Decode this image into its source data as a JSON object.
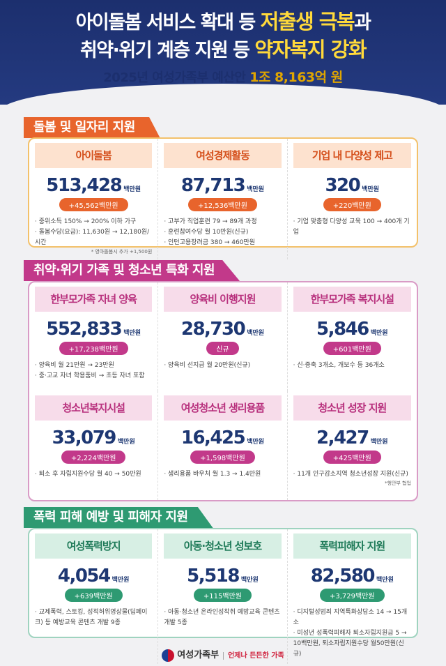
{
  "header": {
    "line1_pre": "아이돌봄 서비스 확대 등 ",
    "line1_hl": "저출생 극복",
    "line1_post": "과",
    "line2_pre": "취약·위기 계층 지원 등 ",
    "line2_hl": "약자복지 강화",
    "line3_pre": "2025년 여성가족부 예산안 ",
    "line3_hl": "1조 8,163억 원"
  },
  "unit": "백만원",
  "sections": [
    {
      "title": "돌봄 및 일자리 지원",
      "color": "#e8642c",
      "border": "#f3c16a",
      "label_bg": "#fde2cf",
      "label_color": "#d5501c",
      "items": [
        {
          "label": "아이돌봄",
          "amount": "513,428",
          "change": "+45,562백만원",
          "bullets": [
            "중위소득 150% → 200% 이하 가구",
            "돌봄수당(요금): 11,630원 → 12,180원/시간"
          ],
          "note": "* 영아돌봄시 추가 +1,500원"
        },
        {
          "label": "여성경제활동",
          "amount": "87,713",
          "change": "+12,536백만원",
          "bullets": [
            "고부가 직업훈련 79 → 89개 과정",
            "훈련참여수당 월 10만원(신규)",
            "인턴고용장려금 380 → 460만원"
          ]
        },
        {
          "label": "기업 내 다양성 제고",
          "amount": "320",
          "change": "+220백만원",
          "bullets": [
            "기업 맞춤형 다양성 교육 100 → 400개 기업"
          ]
        }
      ]
    },
    {
      "title": "취약·위기 가족 및 청소년 특화 지원",
      "color": "#c2398a",
      "border": "#d99bc6",
      "label_bg": "#f7dcea",
      "label_color": "#b8307d",
      "items": [
        {
          "label": "한부모가족 자녀 양육",
          "amount": "552,833",
          "change": "+17,238백만원",
          "bullets": [
            "양육비 월 21만원 → 23만원",
            "중·고교 자녀 학용품비 → 초등 자녀 포함"
          ]
        },
        {
          "label": "양육비 이행지원",
          "amount": "28,730",
          "change": "신규",
          "bullets": [
            "양육비 선지급 월 20만원(신규)"
          ]
        },
        {
          "label": "한부모가족 복지시설",
          "amount": "5,846",
          "change": "+601백만원",
          "bullets": [
            "신·증축 3개소, 개보수 등 36개소"
          ]
        },
        {
          "label": "청소년복지시설",
          "amount": "33,079",
          "change": "+2,224백만원",
          "bullets": [
            "퇴소 후 자립지원수당 월 40 → 50만원"
          ]
        },
        {
          "label": "여성청소년 생리용품",
          "amount": "16,425",
          "change": "+1,598백만원",
          "bullets": [
            "생리용품 바우처 월 1.3 → 1.4만원"
          ]
        },
        {
          "label": "청소년 성장 지원",
          "amount": "2,427",
          "change": "+425백만원",
          "bullets": [
            "11개 인구감소지역 청소년성장 지원(신규)"
          ],
          "note": "*행안부 협업"
        }
      ]
    },
    {
      "title": "폭력 피해 예방 및 피해자 지원",
      "color": "#2e9a72",
      "border": "#9fd3bf",
      "label_bg": "#d7efe4",
      "label_color": "#1e7a58",
      "items": [
        {
          "label": "여성폭력방지",
          "amount": "4,054",
          "change": "+639백만원",
          "bullets": [
            "교제폭력, 스토킹, 성적허위영상물(딥페이크) 등 예방교육 콘텐츠 개발 9종"
          ]
        },
        {
          "label": "아동·청소년 성보호",
          "amount": "5,518",
          "change": "+115백만원",
          "bullets": [
            "아동·청소년 온라인성착취 예방교육 콘텐츠 개발 5종"
          ]
        },
        {
          "label": "폭력피해자 지원",
          "amount": "82,580",
          "change": "+3,729백만원",
          "bullets": [
            "디지털성범죄 지역특화상담소 14 → 15개소",
            "미성년 성폭력피해자 퇴소자립지원금 5 → 10백만원, 퇴소자립지원수당 월50만원(신규)"
          ]
        }
      ]
    }
  ],
  "footer": {
    "ministry": "여성가족부",
    "slogan": "언제나 든든한 가족"
  }
}
